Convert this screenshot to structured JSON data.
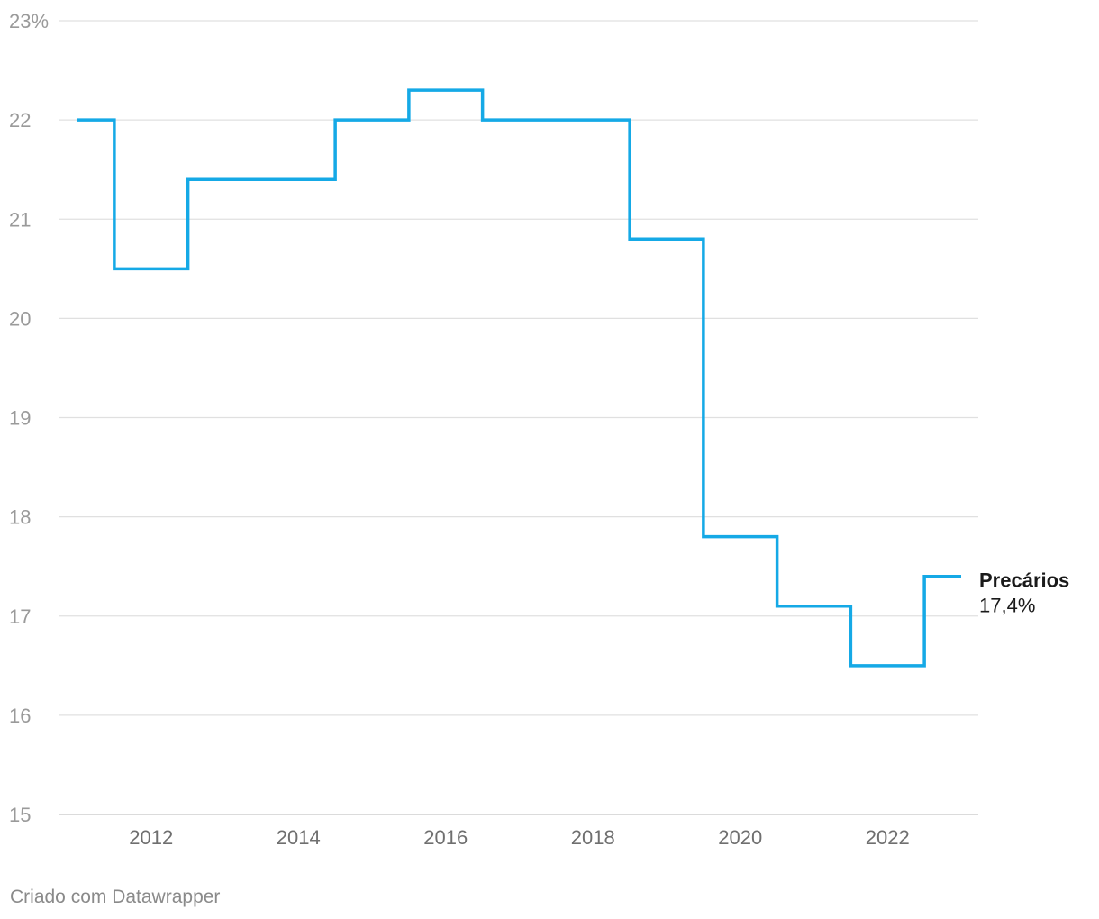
{
  "chart_data": {
    "type": "line",
    "step": true,
    "x": [
      2011,
      2012,
      2013,
      2014,
      2015,
      2016,
      2017,
      2018,
      2019,
      2020,
      2021,
      2022,
      2023
    ],
    "series": [
      {
        "name": "Precários",
        "values": [
          22.0,
          20.5,
          21.4,
          21.4,
          22.0,
          22.3,
          22.0,
          22.0,
          20.8,
          17.8,
          17.1,
          16.5,
          17.4
        ],
        "end_label": "17,4%",
        "color": "#15a9e6"
      }
    ],
    "ylim": [
      15,
      23
    ],
    "yticks": [
      "15",
      "16",
      "17",
      "18",
      "19",
      "20",
      "21",
      "22",
      "23%"
    ],
    "xticks": [
      "2012",
      "2014",
      "2016",
      "2018",
      "2020",
      "2022"
    ],
    "grid": true
  },
  "footer": {
    "credit": "Criado com Datawrapper"
  }
}
